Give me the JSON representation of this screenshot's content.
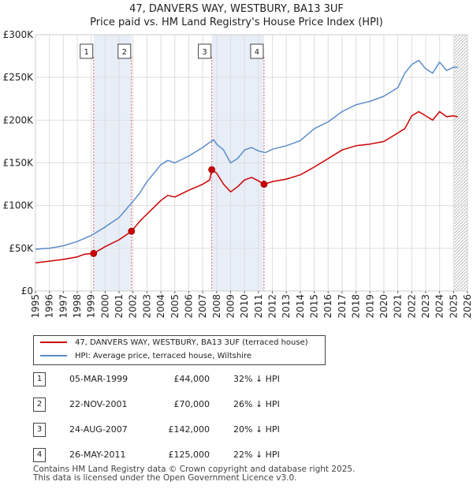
{
  "title": "47, DANVERS WAY, WESTBURY, BA13 3UF",
  "subtitle": "Price paid vs. HM Land Registry's House Price Index (HPI)",
  "chart_data": {
    "type": "line",
    "xlim": [
      1995,
      2026
    ],
    "ylim": [
      0,
      300000
    ],
    "y_ticks": [
      {
        "value": 0,
        "label": "£0"
      },
      {
        "value": 50000,
        "label": "£50K"
      },
      {
        "value": 100000,
        "label": "£100K"
      },
      {
        "value": 150000,
        "label": "£150K"
      },
      {
        "value": 200000,
        "label": "£200K"
      },
      {
        "value": 250000,
        "label": "£250K"
      },
      {
        "value": 300000,
        "label": "£300K"
      }
    ],
    "x_ticks": [
      "1995",
      "1996",
      "1997",
      "1998",
      "1999",
      "2000",
      "2001",
      "2002",
      "2003",
      "2004",
      "2005",
      "2006",
      "2007",
      "2008",
      "2009",
      "2010",
      "2011",
      "2012",
      "2013",
      "2014",
      "2015",
      "2016",
      "2017",
      "2018",
      "2019",
      "2020",
      "2021",
      "2022",
      "2023",
      "2024",
      "2025",
      "2026"
    ],
    "grid": true,
    "shaded_periods": [
      [
        1999.17,
        2001.89
      ],
      [
        2007.65,
        2011.4
      ]
    ],
    "hatched_from": 2025.0,
    "series": [
      {
        "name": "47, DANVERS WAY, WESTBURY, BA13 3UF (terraced house)",
        "color": "#cc0000",
        "x": [
          1995,
          1996,
          1997,
          1998,
          1998.5,
          1999.17,
          2000,
          2001,
          2001.89,
          2002.5,
          2003,
          2003.5,
          2004,
          2004.5,
          2005,
          2006,
          2007,
          2007.5,
          2007.65,
          2008,
          2008.5,
          2009,
          2009.5,
          2010,
          2010.5,
          2011,
          2011.4,
          2012,
          2013,
          2014,
          2015,
          2016,
          2017,
          2018,
          2019,
          2020,
          2020.5,
          2021,
          2021.5,
          2022,
          2022.5,
          2023,
          2023.5,
          2024,
          2024.5,
          2025,
          2025.3
        ],
        "y": [
          33000,
          35000,
          37000,
          40000,
          43000,
          44000,
          52000,
          60000,
          70000,
          82000,
          90000,
          98000,
          106000,
          112000,
          110000,
          118000,
          125000,
          130000,
          142000,
          138000,
          125000,
          116000,
          122000,
          130000,
          133000,
          129000,
          125000,
          128000,
          131000,
          136000,
          145000,
          155000,
          165000,
          170000,
          172000,
          175000,
          180000,
          185000,
          190000,
          205000,
          210000,
          205000,
          200000,
          210000,
          204000,
          205000,
          204000
        ]
      },
      {
        "name": "HPI: Average price, terraced house, Wiltshire",
        "color": "#5b8dc9",
        "x": [
          1995,
          1996,
          1997,
          1998,
          1999,
          2000,
          2001,
          2002,
          2002.5,
          2003,
          2003.5,
          2004,
          2004.5,
          2005,
          2006,
          2007,
          2007.5,
          2007.8,
          2008,
          2008.5,
          2009,
          2009.5,
          2010,
          2010.5,
          2011,
          2011.5,
          2012,
          2013,
          2014,
          2015,
          2016,
          2017,
          2018,
          2019,
          2020,
          2021,
          2021.5,
          2022,
          2022.5,
          2023,
          2023.5,
          2024,
          2024.5,
          2025,
          2025.3
        ],
        "y": [
          49000,
          50000,
          53000,
          58000,
          65000,
          75000,
          86000,
          105000,
          115000,
          128000,
          138000,
          148000,
          153000,
          150000,
          158000,
          168000,
          174000,
          177000,
          172000,
          165000,
          150000,
          155000,
          165000,
          168000,
          164000,
          162000,
          166000,
          170000,
          176000,
          190000,
          198000,
          210000,
          218000,
          222000,
          228000,
          238000,
          255000,
          265000,
          270000,
          260000,
          255000,
          268000,
          258000,
          262000,
          262000
        ]
      }
    ],
    "markers": [
      {
        "label": "1",
        "x": 1999.17,
        "y": 44000
      },
      {
        "label": "2",
        "x": 2001.89,
        "y": 70000
      },
      {
        "label": "3",
        "x": 2007.65,
        "y": 142000
      },
      {
        "label": "4",
        "x": 2011.4,
        "y": 125000
      }
    ]
  },
  "legend": {
    "property_label": "47, DANVERS WAY, WESTBURY, BA13 3UF (terraced house)",
    "hpi_label": "HPI: Average price, terraced house, Wiltshire"
  },
  "sales": [
    {
      "num": "1",
      "date": "05-MAR-1999",
      "price": "£44,000",
      "hpi": "32% ↓ HPI"
    },
    {
      "num": "2",
      "date": "22-NOV-2001",
      "price": "£70,000",
      "hpi": "26% ↓ HPI"
    },
    {
      "num": "3",
      "date": "24-AUG-2007",
      "price": "£142,000",
      "hpi": "20% ↓ HPI"
    },
    {
      "num": "4",
      "date": "26-MAY-2011",
      "price": "£125,000",
      "hpi": "22% ↓ HPI"
    }
  ],
  "footer": {
    "line1": "Contains HM Land Registry data © Crown copyright and database right 2025.",
    "line2": "This data is licensed under the Open Government Licence v3.0."
  },
  "colors": {
    "property": "#cc0000",
    "hpi": "#5b8dc9",
    "shade": "#e8eef8",
    "marker_line": "#d66"
  }
}
